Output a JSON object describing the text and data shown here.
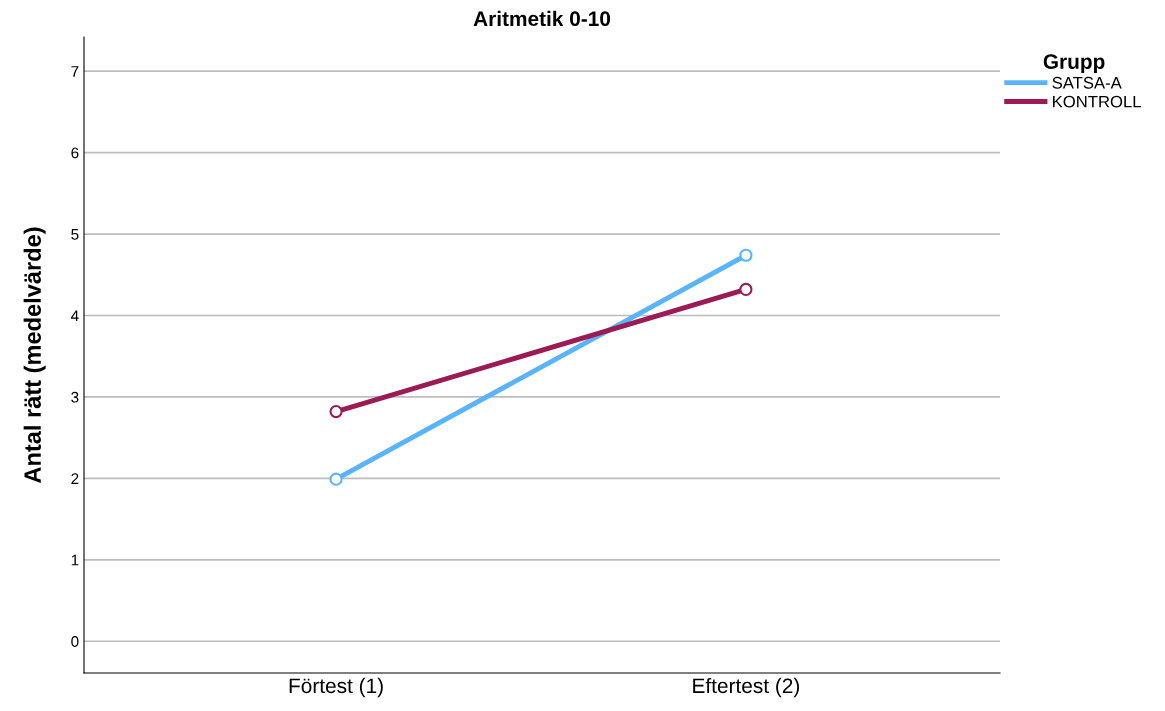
{
  "chart_data": {
    "type": "line",
    "title": "Aritmetik 0-10",
    "ylabel": "Antal rätt (medelvärde)",
    "legend_title": "Grupp",
    "categories": [
      "Förtest (1)",
      "Eftertest (2)"
    ],
    "series": [
      {
        "name": "SATSA-A",
        "color": "#5ab4fa",
        "values": [
          1.99,
          4.74
        ]
      },
      {
        "name": "KONTROLL",
        "color": "#9b1b55",
        "values": [
          2.82,
          4.32
        ]
      }
    ],
    "ylim": [
      -0.39,
      7.42
    ],
    "yticks": [
      0,
      1,
      2,
      3,
      4,
      5,
      6,
      7
    ],
    "grid": "y",
    "legend": "top right",
    "marker": "circle",
    "line_style": "solid"
  }
}
